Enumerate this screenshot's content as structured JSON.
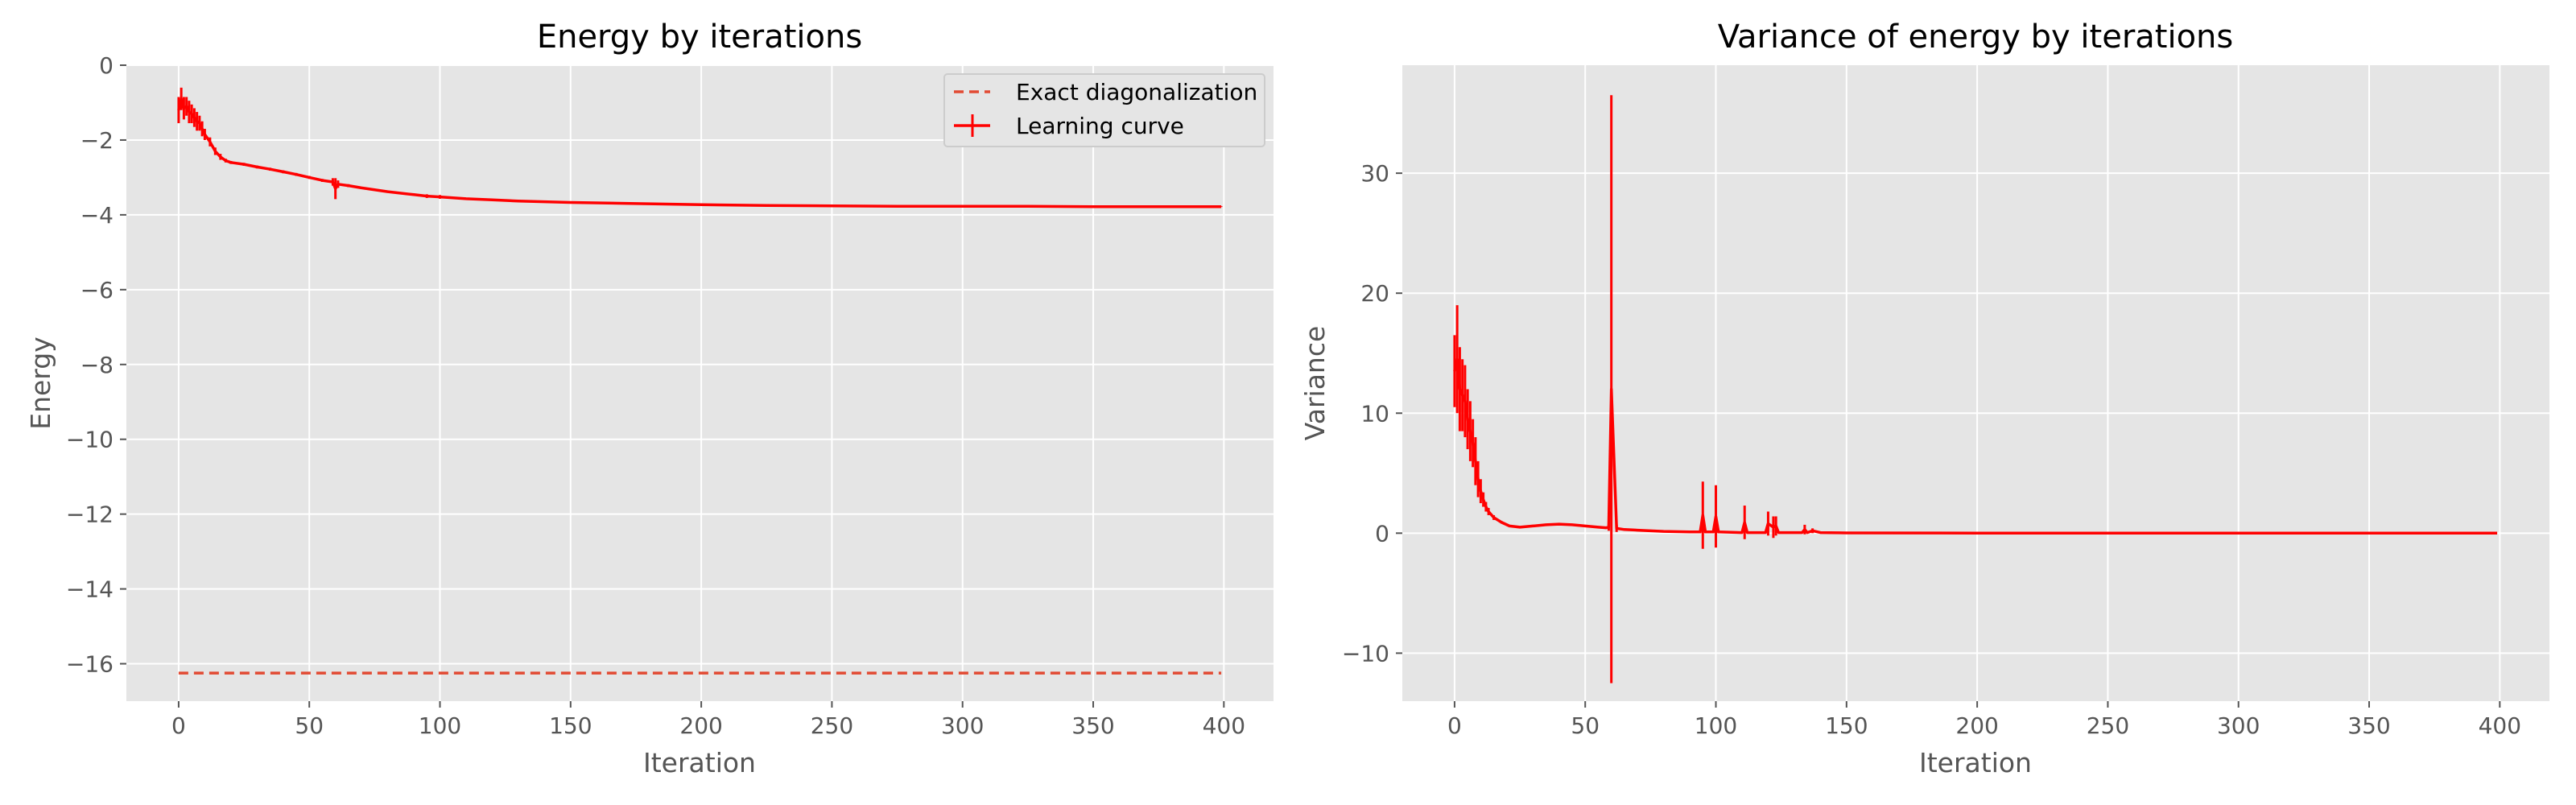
{
  "colors": {
    "background": "#ffffff",
    "plot_background": "#e5e5e5",
    "grid": "#ffffff",
    "tick_text": "#555555",
    "series_red": "#ff0000",
    "exact_line": "#e24a33"
  },
  "chart_data": [
    {
      "type": "line",
      "title": "Energy by iterations",
      "xlabel": "Iteration",
      "ylabel": "Energy",
      "xlim": [
        -20,
        419
      ],
      "ylim": [
        -17,
        0
      ],
      "xticks": [
        0,
        50,
        100,
        150,
        200,
        250,
        300,
        350,
        400
      ],
      "yticks": [
        0,
        -2,
        -4,
        -6,
        -8,
        -10,
        -12,
        -14,
        -16
      ],
      "xtick_labels": [
        "0",
        "50",
        "100",
        "150",
        "200",
        "250",
        "300",
        "350",
        "400"
      ],
      "ytick_labels": [
        "0",
        "−2",
        "−4",
        "−6",
        "−8",
        "−10",
        "−12",
        "−14",
        "−16"
      ],
      "grid": true,
      "legend_position": "top-right",
      "legend": [
        "Exact diagonalization",
        "Learning curve"
      ],
      "series": [
        {
          "name": "Exact diagonalization",
          "style": "dashed",
          "color": "#e24a33",
          "x": [
            0,
            399
          ],
          "y": [
            -16.25,
            -16.25
          ]
        },
        {
          "name": "Learning curve",
          "style": "solid-with-errorbars",
          "color": "#ff0000",
          "x": [
            0,
            1,
            2,
            3,
            4,
            5,
            6,
            7,
            8,
            9,
            10,
            12,
            14,
            16,
            18,
            20,
            25,
            30,
            35,
            40,
            45,
            50,
            55,
            59,
            60,
            61,
            65,
            70,
            80,
            90,
            95,
            100,
            110,
            120,
            130,
            140,
            150,
            175,
            200,
            225,
            250,
            275,
            300,
            325,
            350,
            375,
            399
          ],
          "y": [
            -1.2,
            -0.9,
            -1.15,
            -1.1,
            -1.25,
            -1.3,
            -1.4,
            -1.5,
            -1.55,
            -1.7,
            -1.85,
            -2.05,
            -2.3,
            -2.45,
            -2.55,
            -2.6,
            -2.65,
            -2.72,
            -2.78,
            -2.85,
            -2.92,
            -3.0,
            -3.08,
            -3.12,
            -3.3,
            -3.18,
            -3.22,
            -3.28,
            -3.38,
            -3.46,
            -3.5,
            -3.52,
            -3.57,
            -3.6,
            -3.63,
            -3.65,
            -3.67,
            -3.7,
            -3.73,
            -3.75,
            -3.76,
            -3.77,
            -3.77,
            -3.77,
            -3.78,
            -3.78,
            -3.78
          ],
          "err": [
            0.35,
            0.3,
            0.3,
            0.25,
            0.3,
            0.25,
            0.25,
            0.25,
            0.2,
            0.2,
            0.15,
            0.12,
            0.1,
            0.08,
            0.05,
            0.04,
            0.04,
            0.04,
            0.04,
            0.04,
            0.04,
            0.04,
            0.04,
            0.1,
            0.28,
            0.1,
            0.04,
            0.03,
            0.03,
            0.03,
            0.05,
            0.05,
            0.03,
            0.02,
            0.02,
            0.02,
            0.01,
            0.01,
            0.01,
            0.01,
            0.01,
            0.01,
            0.01,
            0.01,
            0.01,
            0.01,
            0.01
          ]
        }
      ]
    },
    {
      "type": "line",
      "title": "Variance of energy by iterations",
      "xlabel": "Iteration",
      "ylabel": "Variance",
      "xlim": [
        -20,
        419
      ],
      "ylim": [
        -14,
        39
      ],
      "xticks": [
        0,
        50,
        100,
        150,
        200,
        250,
        300,
        350,
        400
      ],
      "yticks": [
        -10,
        0,
        10,
        20,
        30
      ],
      "xtick_labels": [
        "0",
        "50",
        "100",
        "150",
        "200",
        "250",
        "300",
        "350",
        "400"
      ],
      "ytick_labels": [
        "−10",
        "0",
        "10",
        "20",
        "30"
      ],
      "grid": true,
      "series": [
        {
          "style": "solid-with-errorbars",
          "color": "#ff0000",
          "x": [
            0,
            1,
            2,
            3,
            4,
            5,
            6,
            7,
            8,
            9,
            10,
            11,
            12,
            13,
            15,
            18,
            21,
            25,
            30,
            35,
            40,
            45,
            50,
            55,
            58,
            59,
            60,
            62,
            65,
            70,
            80,
            90,
            94,
            95,
            96,
            99,
            100,
            101,
            110,
            111,
            112,
            119,
            120,
            122,
            123,
            124,
            133,
            134,
            135,
            137,
            140,
            150,
            200,
            250,
            300,
            350,
            399
          ],
          "y": [
            13.5,
            14.5,
            12.0,
            11.5,
            11.0,
            9.5,
            8.5,
            7.5,
            6.0,
            4.5,
            3.5,
            2.8,
            2.2,
            1.8,
            1.3,
            0.9,
            0.6,
            0.5,
            0.6,
            0.7,
            0.75,
            0.7,
            0.6,
            0.5,
            0.45,
            0.5,
            12.0,
            0.4,
            0.3,
            0.25,
            0.15,
            0.1,
            0.1,
            1.5,
            0.1,
            0.1,
            1.4,
            0.1,
            0.05,
            0.9,
            0.05,
            0.05,
            0.8,
            0.5,
            0.6,
            0.05,
            0.05,
            0.3,
            0.05,
            0.2,
            0.05,
            0.02,
            0.01,
            0.0,
            0.0,
            0.0,
            0.0
          ],
          "err": [
            3.0,
            4.5,
            3.5,
            3.0,
            3.0,
            2.5,
            2.5,
            2.0,
            2.0,
            1.5,
            1.0,
            0.6,
            0.4,
            0.3,
            0.2,
            0.1,
            0.05,
            0.05,
            0.05,
            0.05,
            0.05,
            0.05,
            0.05,
            0.05,
            0.1,
            0.3,
            24.5,
            0.3,
            0.05,
            0.05,
            0.03,
            0.03,
            0.1,
            2.8,
            0.1,
            0.1,
            2.6,
            0.1,
            0.05,
            1.4,
            0.05,
            0.05,
            1.0,
            0.9,
            0.8,
            0.05,
            0.05,
            0.4,
            0.05,
            0.2,
            0.05,
            0.02,
            0.01,
            0.0,
            0.0,
            0.0,
            0.0
          ]
        }
      ]
    }
  ]
}
